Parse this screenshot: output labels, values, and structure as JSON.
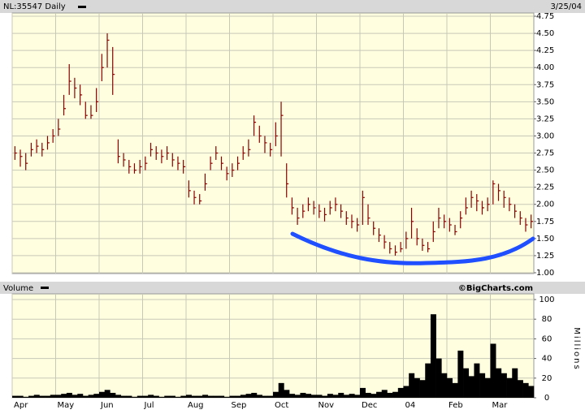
{
  "chart_data": [
    {
      "type": "ohlc",
      "title": "NL:35547 Daily",
      "date_label": "3/25/04",
      "color": "#8b0000",
      "high": [
        2.85,
        2.8,
        2.75,
        2.9,
        2.95,
        2.9,
        3.0,
        3.1,
        3.25,
        3.6,
        4.05,
        3.85,
        3.75,
        3.5,
        3.45,
        3.7,
        4.2,
        4.5,
        4.3,
        2.95,
        2.75,
        2.65,
        2.6,
        2.65,
        2.7,
        2.9,
        2.85,
        2.8,
        2.85,
        2.75,
        2.7,
        2.65,
        2.35,
        2.2,
        2.15,
        2.45,
        2.7,
        2.85,
        2.7,
        2.55,
        2.6,
        2.7,
        2.85,
        2.95,
        3.3,
        3.15,
        3.0,
        2.9,
        3.2,
        3.5,
        2.6,
        2.1,
        1.95,
        2.0,
        2.1,
        2.05,
        2.0,
        1.95,
        2.05,
        2.1,
        2.0,
        1.9,
        1.85,
        1.8,
        2.2,
        2.0,
        1.75,
        1.65,
        1.55,
        1.45,
        1.4,
        1.45,
        1.6,
        1.95,
        1.65,
        1.5,
        1.45,
        1.75,
        1.95,
        1.85,
        1.8,
        1.7,
        1.9,
        2.1,
        2.2,
        2.15,
        2.05,
        2.1,
        2.35,
        2.3,
        2.2,
        2.1,
        2.0,
        1.9,
        1.8,
        1.85
      ],
      "low": [
        2.65,
        2.55,
        2.5,
        2.7,
        2.75,
        2.7,
        2.8,
        2.9,
        3.0,
        3.3,
        3.6,
        3.55,
        3.45,
        3.25,
        3.25,
        3.35,
        3.8,
        4.0,
        3.6,
        2.6,
        2.55,
        2.45,
        2.45,
        2.45,
        2.5,
        2.7,
        2.65,
        2.6,
        2.65,
        2.55,
        2.5,
        2.45,
        2.1,
        2.0,
        2.0,
        2.2,
        2.5,
        2.65,
        2.5,
        2.35,
        2.4,
        2.5,
        2.65,
        2.7,
        3.0,
        2.9,
        2.75,
        2.7,
        2.85,
        2.7,
        2.1,
        1.85,
        1.7,
        1.8,
        1.9,
        1.85,
        1.8,
        1.75,
        1.85,
        1.9,
        1.8,
        1.7,
        1.65,
        1.6,
        1.7,
        1.7,
        1.55,
        1.45,
        1.35,
        1.28,
        1.25,
        1.3,
        1.35,
        1.5,
        1.4,
        1.32,
        1.3,
        1.45,
        1.65,
        1.65,
        1.6,
        1.55,
        1.65,
        1.85,
        1.95,
        1.9,
        1.85,
        1.9,
        2.0,
        2.05,
        1.95,
        1.9,
        1.8,
        1.7,
        1.6,
        1.65
      ],
      "close": [
        2.75,
        2.7,
        2.6,
        2.8,
        2.85,
        2.8,
        2.9,
        3.0,
        3.1,
        3.4,
        3.8,
        3.7,
        3.6,
        3.3,
        3.3,
        3.5,
        4.0,
        4.4,
        3.9,
        2.7,
        2.65,
        2.55,
        2.5,
        2.55,
        2.6,
        2.8,
        2.75,
        2.7,
        2.75,
        2.65,
        2.6,
        2.55,
        2.2,
        2.1,
        2.05,
        2.3,
        2.6,
        2.75,
        2.6,
        2.45,
        2.5,
        2.6,
        2.75,
        2.8,
        3.2,
        3.0,
        2.9,
        2.8,
        3.0,
        3.3,
        2.3,
        1.95,
        1.8,
        1.9,
        2.0,
        1.95,
        1.9,
        1.85,
        1.95,
        2.0,
        1.9,
        1.8,
        1.75,
        1.7,
        2.1,
        1.8,
        1.65,
        1.55,
        1.45,
        1.35,
        1.3,
        1.35,
        1.5,
        1.75,
        1.5,
        1.4,
        1.35,
        1.6,
        1.8,
        1.75,
        1.7,
        1.6,
        1.8,
        1.95,
        2.1,
        2.05,
        1.95,
        2.0,
        2.3,
        2.2,
        2.1,
        2.0,
        1.9,
        1.8,
        1.7,
        1.75
      ],
      "ylim": [
        1,
        4.75
      ],
      "yticks": [
        {
          "value": 1,
          "label": "1.00"
        },
        {
          "value": 1.25,
          "label": "1.25"
        },
        {
          "value": 1.5,
          "label": "1.50"
        },
        {
          "value": 1.75,
          "label": "1.75"
        },
        {
          "value": 2,
          "label": "2.00"
        },
        {
          "value": 2.25,
          "label": "2.25"
        },
        {
          "value": 2.5,
          "label": "2.50"
        },
        {
          "value": 2.75,
          "label": "2.75"
        },
        {
          "value": 3,
          "label": "3.00"
        },
        {
          "value": 3.25,
          "label": "3.25"
        },
        {
          "value": 3.5,
          "label": "3.50"
        },
        {
          "value": 3.75,
          "label": "3.75"
        },
        {
          "value": 4,
          "label": "4.00"
        },
        {
          "value": 4.25,
          "label": "4.25"
        },
        {
          "value": 4.5,
          "label": "4.50"
        },
        {
          "value": 4.75,
          "label": "4.75"
        }
      ],
      "grid": true
    },
    {
      "type": "bar",
      "title": "Volume",
      "credit": "©BigCharts.com",
      "ylabel": "Millions",
      "color": "#000000",
      "categories": [
        "Apr",
        null,
        null,
        null,
        null,
        null,
        null,
        null,
        "May",
        null,
        null,
        null,
        null,
        null,
        null,
        null,
        "Jun",
        null,
        null,
        null,
        null,
        null,
        null,
        null,
        "Jul",
        null,
        null,
        null,
        null,
        null,
        null,
        null,
        "Aug",
        null,
        null,
        null,
        null,
        null,
        null,
        null,
        "Sep",
        null,
        null,
        null,
        null,
        null,
        null,
        null,
        "Oct",
        null,
        null,
        null,
        null,
        null,
        null,
        null,
        "Nov",
        null,
        null,
        null,
        null,
        null,
        null,
        null,
        "Dec",
        null,
        null,
        null,
        null,
        null,
        null,
        null,
        "04",
        null,
        null,
        null,
        null,
        null,
        null,
        null,
        "Feb",
        null,
        null,
        null,
        null,
        null,
        null,
        null,
        "Mar",
        null,
        null,
        null,
        null,
        null,
        null,
        null
      ],
      "values": [
        2,
        2,
        1,
        2,
        3,
        2,
        2,
        3,
        3,
        4,
        5,
        3,
        4,
        2,
        3,
        4,
        6,
        8,
        5,
        3,
        2,
        2,
        1,
        2,
        2,
        3,
        2,
        1,
        2,
        2,
        1,
        2,
        3,
        2,
        2,
        3,
        2,
        2,
        2,
        1,
        2,
        2,
        3,
        4,
        5,
        3,
        2,
        2,
        6,
        15,
        8,
        4,
        3,
        5,
        4,
        3,
        3,
        2,
        4,
        3,
        5,
        3,
        4,
        3,
        10,
        5,
        4,
        6,
        8,
        5,
        6,
        10,
        12,
        25,
        20,
        18,
        35,
        85,
        40,
        25,
        20,
        15,
        48,
        30,
        22,
        35,
        25,
        20,
        55,
        30,
        25,
        20,
        30,
        18,
        15,
        12
      ],
      "ylim": [
        0,
        100
      ],
      "yticks": [
        0,
        20,
        40,
        60,
        80,
        100
      ],
      "grid": true
    }
  ]
}
